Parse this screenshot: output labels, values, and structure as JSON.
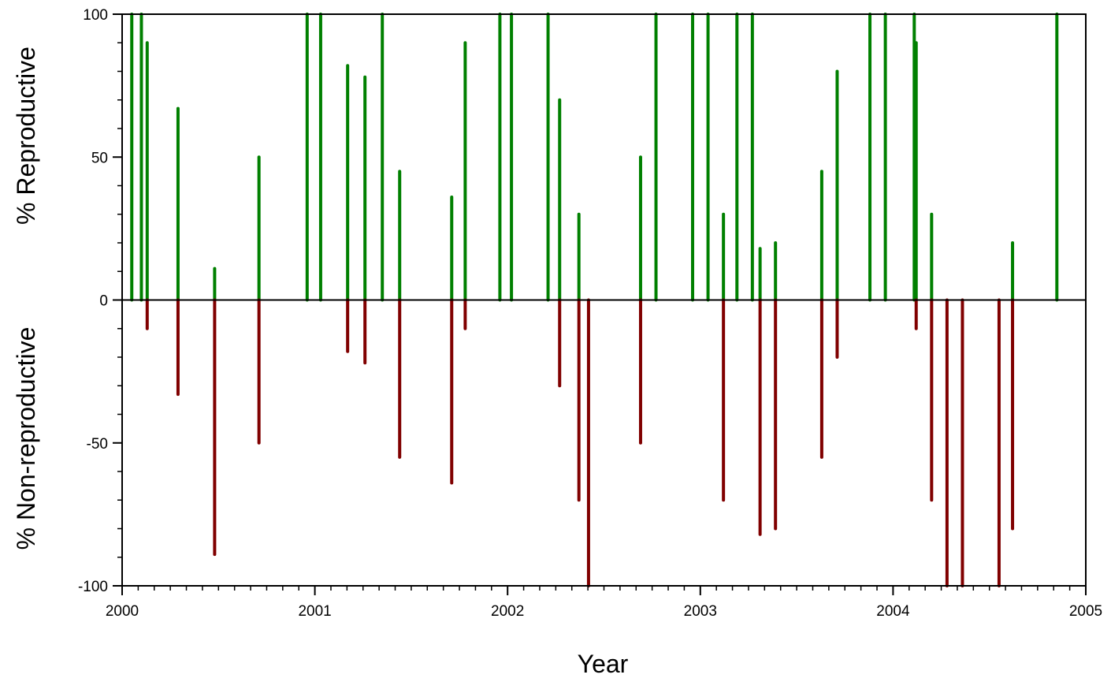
{
  "chart_data": {
    "type": "bar",
    "xlabel": "Year",
    "ylabel_top": "% Reproductive",
    "ylabel_bottom": "% Non-reproductive",
    "xlim": [
      2000,
      2005
    ],
    "ylim": [
      -100,
      100
    ],
    "x_ticks": [
      "2000",
      "2001",
      "2002",
      "2003",
      "2004",
      "2005"
    ],
    "y_ticks": [
      "100",
      "50",
      "0",
      "-50",
      "-100"
    ],
    "grid": false,
    "colors": {
      "reproductive": "#008000",
      "non_reproductive": "#800000",
      "axis": "#000000"
    },
    "series": [
      {
        "key": "reproductive",
        "points": [
          {
            "x": 2000.05,
            "y": 100
          },
          {
            "x": 2000.1,
            "y": 100
          },
          {
            "x": 2000.13,
            "y": 90
          },
          {
            "x": 2000.29,
            "y": 67
          },
          {
            "x": 2000.48,
            "y": 11
          },
          {
            "x": 2000.71,
            "y": 50
          },
          {
            "x": 2000.96,
            "y": 100
          },
          {
            "x": 2001.03,
            "y": 100
          },
          {
            "x": 2001.17,
            "y": 82
          },
          {
            "x": 2001.26,
            "y": 78
          },
          {
            "x": 2001.35,
            "y": 100
          },
          {
            "x": 2001.44,
            "y": 45
          },
          {
            "x": 2001.71,
            "y": 36
          },
          {
            "x": 2001.78,
            "y": 90
          },
          {
            "x": 2001.96,
            "y": 100
          },
          {
            "x": 2002.02,
            "y": 100
          },
          {
            "x": 2002.21,
            "y": 100
          },
          {
            "x": 2002.27,
            "y": 70
          },
          {
            "x": 2002.37,
            "y": 30
          },
          {
            "x": 2002.69,
            "y": 50
          },
          {
            "x": 2002.77,
            "y": 100
          },
          {
            "x": 2002.96,
            "y": 100
          },
          {
            "x": 2003.04,
            "y": 100
          },
          {
            "x": 2003.12,
            "y": 30
          },
          {
            "x": 2003.19,
            "y": 100
          },
          {
            "x": 2003.27,
            "y": 100
          },
          {
            "x": 2003.31,
            "y": 18
          },
          {
            "x": 2003.39,
            "y": 20
          },
          {
            "x": 2003.63,
            "y": 45
          },
          {
            "x": 2003.71,
            "y": 80
          },
          {
            "x": 2003.88,
            "y": 100
          },
          {
            "x": 2003.96,
            "y": 100
          },
          {
            "x": 2004.11,
            "y": 100
          },
          {
            "x": 2004.12,
            "y": 90
          },
          {
            "x": 2004.2,
            "y": 30
          },
          {
            "x": 2004.62,
            "y": 20
          },
          {
            "x": 2004.85,
            "y": 100
          }
        ]
      },
      {
        "key": "non_reproductive",
        "points": [
          {
            "x": 2000.13,
            "y": -10
          },
          {
            "x": 2000.29,
            "y": -33
          },
          {
            "x": 2000.48,
            "y": -89
          },
          {
            "x": 2000.71,
            "y": -50
          },
          {
            "x": 2001.17,
            "y": -18
          },
          {
            "x": 2001.26,
            "y": -22
          },
          {
            "x": 2001.44,
            "y": -55
          },
          {
            "x": 2001.71,
            "y": -64
          },
          {
            "x": 2001.78,
            "y": -10
          },
          {
            "x": 2002.27,
            "y": -30
          },
          {
            "x": 2002.37,
            "y": -70
          },
          {
            "x": 2002.42,
            "y": -100
          },
          {
            "x": 2002.69,
            "y": -50
          },
          {
            "x": 2003.12,
            "y": -70
          },
          {
            "x": 2003.31,
            "y": -82
          },
          {
            "x": 2003.39,
            "y": -80
          },
          {
            "x": 2003.63,
            "y": -55
          },
          {
            "x": 2003.71,
            "y": -20
          },
          {
            "x": 2004.12,
            "y": -10
          },
          {
            "x": 2004.2,
            "y": -70
          },
          {
            "x": 2004.28,
            "y": -100
          },
          {
            "x": 2004.36,
            "y": -100
          },
          {
            "x": 2004.55,
            "y": -100
          },
          {
            "x": 2004.62,
            "y": -80
          }
        ]
      }
    ]
  }
}
